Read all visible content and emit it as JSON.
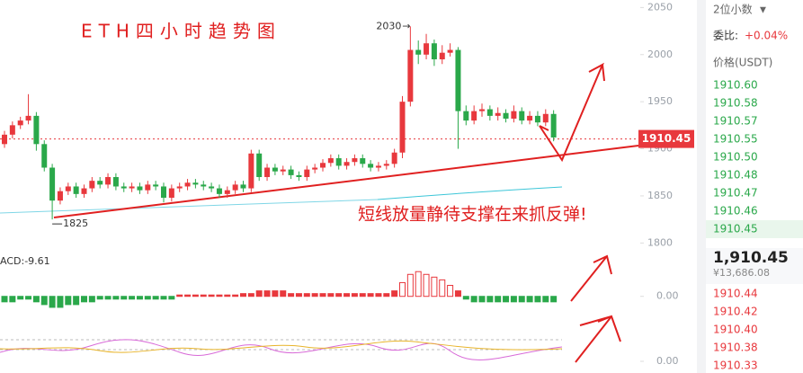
{
  "chart_data": {
    "type": "candlestick",
    "title": "ETH四小时趋势图",
    "annotation": "短线放量静待支撑在来抓反弹!",
    "up_color": "#e8383d",
    "down_color": "#2aa84a",
    "open": [
      1905,
      1915,
      1925,
      1930,
      1935,
      1905,
      1880,
      1845,
      1855,
      1860,
      1852,
      1858,
      1866,
      1862,
      1870,
      1860,
      1858,
      1860,
      1856,
      1862,
      1860,
      1848,
      1858,
      1860,
      1864,
      1862,
      1860,
      1858,
      1852,
      1856,
      1862,
      1858,
      1895,
      1870,
      1880,
      1876,
      1878,
      1872,
      1870,
      1878,
      1880,
      1885,
      1890,
      1882,
      1886,
      1890,
      1884,
      1880,
      1882,
      1884,
      1896,
      1950,
      2005,
      2000,
      2012,
      1995,
      2002,
      2005,
      1940,
      1930,
      1940,
      1942,
      1935,
      1938,
      1932,
      1940,
      1930,
      1935,
      1928,
      1937
    ],
    "high": [
      1919,
      1929,
      1934,
      1958,
      1939,
      1909,
      1884,
      1859,
      1864,
      1864,
      1862,
      1870,
      1870,
      1874,
      1874,
      1864,
      1864,
      1864,
      1866,
      1866,
      1864,
      1862,
      1864,
      1868,
      1868,
      1866,
      1864,
      1862,
      1860,
      1866,
      1866,
      1899,
      1899,
      1884,
      1884,
      1882,
      1882,
      1876,
      1882,
      1884,
      1889,
      1894,
      1894,
      1890,
      1894,
      1894,
      1888,
      1886,
      1888,
      1900,
      1956,
      2030,
      2015,
      2022,
      2016,
      2010,
      2012,
      2008,
      1946,
      1946,
      1948,
      1946,
      1944,
      1942,
      1946,
      1944,
      1940,
      1940,
      1942,
      1941
    ],
    "low": [
      1901,
      1911,
      1921,
      1926,
      1898,
      1876,
      1825,
      1841,
      1851,
      1848,
      1848,
      1854,
      1858,
      1858,
      1856,
      1854,
      1854,
      1852,
      1852,
      1856,
      1843,
      1844,
      1854,
      1856,
      1858,
      1856,
      1854,
      1848,
      1848,
      1852,
      1854,
      1854,
      1866,
      1866,
      1872,
      1872,
      1868,
      1866,
      1866,
      1874,
      1876,
      1881,
      1878,
      1878,
      1882,
      1880,
      1876,
      1876,
      1878,
      1880,
      1890,
      1945,
      1990,
      1995,
      1988,
      1990,
      1998,
      1900,
      1925,
      1926,
      1934,
      1930,
      1930,
      1928,
      1928,
      1926,
      1926,
      1924,
      1924,
      1908
    ],
    "close": [
      1915,
      1925,
      1930,
      1935,
      1905,
      1880,
      1845,
      1855,
      1860,
      1852,
      1858,
      1866,
      1862,
      1870,
      1860,
      1858,
      1860,
      1856,
      1862,
      1860,
      1848,
      1858,
      1860,
      1864,
      1862,
      1860,
      1858,
      1852,
      1856,
      1862,
      1858,
      1895,
      1870,
      1880,
      1876,
      1878,
      1872,
      1870,
      1878,
      1880,
      1885,
      1890,
      1882,
      1886,
      1890,
      1884,
      1880,
      1882,
      1884,
      1896,
      1950,
      2005,
      2000,
      2012,
      1995,
      2002,
      2005,
      1940,
      1930,
      1940,
      1942,
      1935,
      1938,
      1932,
      1940,
      1930,
      1935,
      1928,
      1937,
      1912
    ],
    "ylim": [
      1786,
      2058
    ],
    "yticks": [
      1800,
      1850,
      1900,
      1950,
      2000,
      2050
    ],
    "last_price": 1910.45,
    "macd_label": "ACD:-9.61",
    "macd": [
      -2,
      -2,
      -1,
      -1,
      -2,
      -3,
      -4,
      -4,
      -3,
      -3,
      -2,
      -2,
      -1,
      -1,
      -1,
      -1,
      -1,
      -1,
      -1,
      -1,
      -1,
      -1,
      0.5,
      0.5,
      0.5,
      0.5,
      0.5,
      0.5,
      0.5,
      0.5,
      1,
      1,
      2,
      2,
      2,
      2,
      1,
      1,
      1,
      1,
      1,
      1,
      1,
      1,
      1,
      1,
      1,
      1,
      1,
      2,
      5,
      8,
      9,
      8,
      7,
      6,
      4,
      2,
      -1,
      -2,
      -2,
      -2,
      -2,
      -2,
      -2,
      -2,
      -2,
      -2,
      -2,
      -2
    ],
    "macd_ylim": [
      -5,
      13
    ],
    "macd_yticks": [
      {
        "value": 0,
        "label": "0.00"
      }
    ],
    "kdj_ylim": [
      0,
      100
    ],
    "kdj_yticks": [
      {
        "value": 0,
        "label": "0.00"
      }
    ]
  },
  "order_book": {
    "decimals": "2位小数",
    "ratio_label": "委比:",
    "ratio": "+0.04%",
    "price_header": "价格(USDT)",
    "asks": [
      "1910.60",
      "1910.58",
      "1910.57",
      "1910.55",
      "1910.50",
      "1910.48",
      "1910.47",
      "1910.46",
      "1910.45"
    ],
    "current": "1,910.45",
    "cny": "¥13,686.08",
    "bids": [
      "1910.44",
      "1910.42",
      "1910.40",
      "1910.38",
      "1910.33"
    ]
  }
}
